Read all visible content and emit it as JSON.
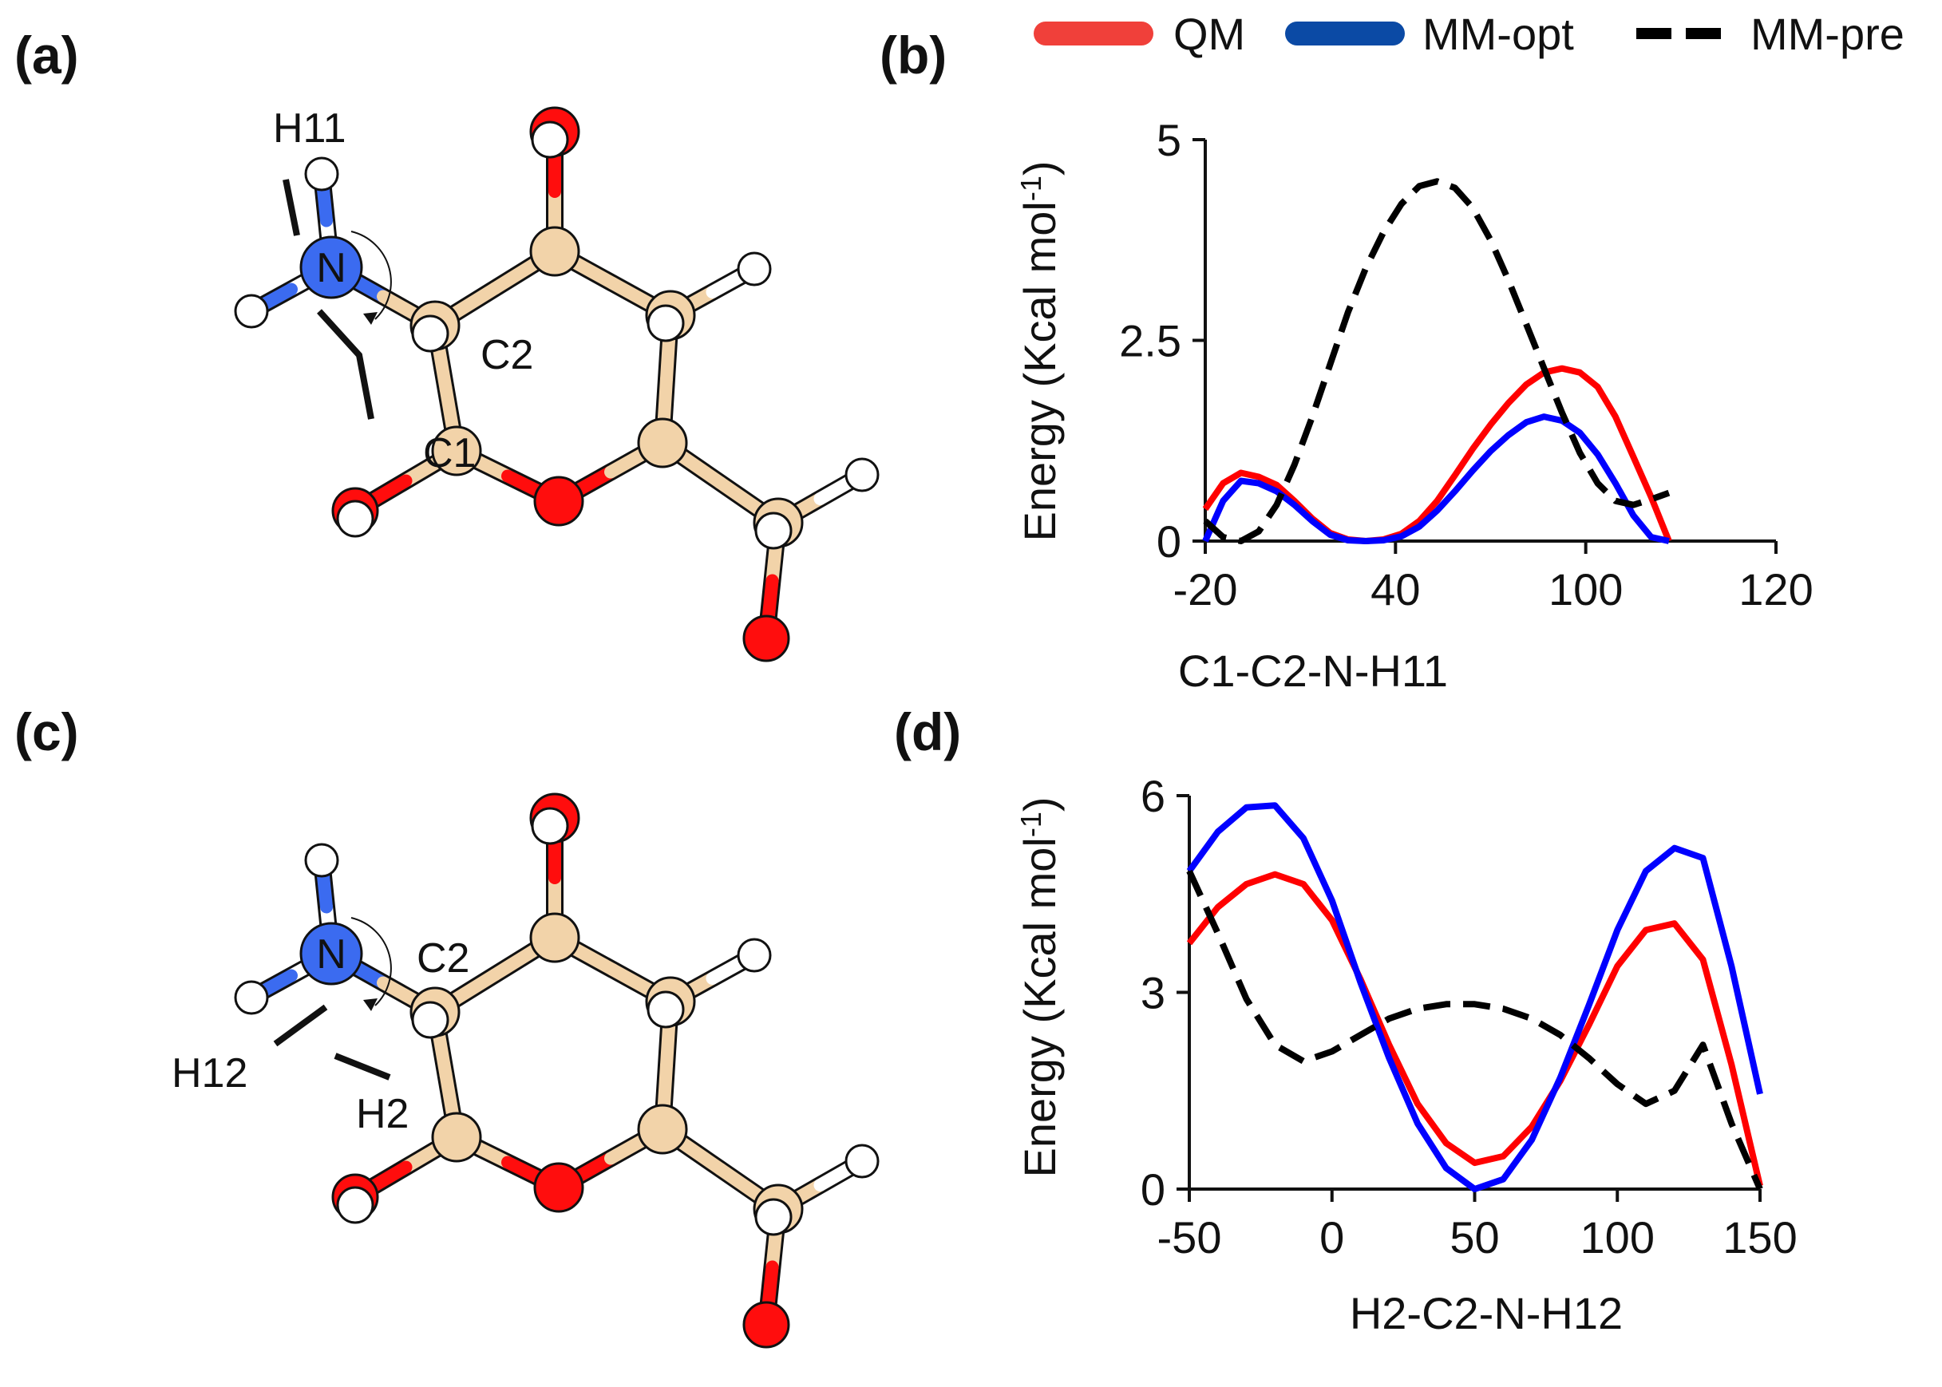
{
  "colors": {
    "qm": "#ff0000",
    "mm_opt": "#0000ff",
    "mm_pre": "#000000",
    "legend_qm": "#f0403a",
    "legend_mm_opt": "#0b4aa5",
    "carbon": "#f2d3a9",
    "oxygen": "#ff0d0d",
    "nitrogen": "#3b6bf0",
    "hydrogen": "#ffffff"
  },
  "legend": {
    "items": [
      {
        "label": "QM",
        "style": "solid",
        "color_key": "legend_qm"
      },
      {
        "label": "MM-opt",
        "style": "solid",
        "color_key": "legend_mm_opt"
      },
      {
        "label": "MM-pre",
        "style": "dashed",
        "color_key": "mm_pre"
      }
    ]
  },
  "panels": {
    "a": {
      "label": "(a)",
      "atoms": {
        "n": "N",
        "c1": "C1",
        "c2": "C2",
        "h11": "H11"
      }
    },
    "c": {
      "label": "(c)",
      "atoms": {
        "n": "N",
        "c2": "C2",
        "h12": "H12",
        "h2": "H2"
      }
    }
  },
  "chart_data": [
    {
      "panel_label": "(b)",
      "type": "line",
      "xlabel": "C1-C2-N-H11",
      "ylabel": "Energy (Kcal mol",
      "ylabel_sup": "-1",
      "ylabel_close": ")",
      "xlim": [
        -20,
        140
      ],
      "ylim": [
        0,
        5
      ],
      "xticks": [
        -20,
        40,
        100,
        120
      ],
      "yticks": [
        0,
        2.5,
        5
      ],
      "ytick_labels": [
        "0",
        "2.5",
        "5"
      ],
      "series": [
        {
          "name": "QM",
          "color_key": "qm",
          "dash": false,
          "x": [
            -20,
            -15,
            -10,
            -5,
            0,
            5,
            10,
            15,
            20,
            25,
            30,
            35,
            40,
            45,
            50,
            55,
            60,
            65,
            70,
            75,
            80,
            85,
            90,
            95,
            100,
            105,
            110,
            115,
            120
          ],
          "y": [
            0.4,
            0.72,
            0.85,
            0.8,
            0.7,
            0.5,
            0.28,
            0.1,
            0.02,
            0.0,
            0.02,
            0.09,
            0.25,
            0.5,
            0.82,
            1.15,
            1.45,
            1.72,
            1.95,
            2.1,
            2.15,
            2.1,
            1.92,
            1.55,
            1.05,
            0.55,
            0.0,
            null,
            null
          ]
        },
        {
          "name": "MM-opt",
          "color_key": "mm_opt",
          "dash": false,
          "x": [
            -20,
            -15,
            -10,
            -5,
            0,
            5,
            10,
            15,
            20,
            25,
            30,
            35,
            40,
            45,
            50,
            55,
            60,
            65,
            70,
            75,
            80,
            85,
            90,
            95,
            100,
            105,
            110
          ],
          "y": [
            0.0,
            0.5,
            0.75,
            0.72,
            0.62,
            0.45,
            0.25,
            0.08,
            0.01,
            0.0,
            0.01,
            0.06,
            0.18,
            0.38,
            0.62,
            0.88,
            1.12,
            1.32,
            1.48,
            1.55,
            1.5,
            1.35,
            1.08,
            0.72,
            0.32,
            0.05,
            0.0
          ]
        },
        {
          "name": "MM-pre",
          "color_key": "mm_pre",
          "dash": true,
          "x": [
            -20,
            -15,
            -10,
            -5,
            0,
            5,
            10,
            15,
            20,
            25,
            30,
            35,
            40,
            45,
            50,
            55,
            60,
            65,
            70,
            75,
            80,
            85,
            90,
            95,
            100,
            105,
            110,
            115
          ],
          "y": [
            0.25,
            0.05,
            0.0,
            0.12,
            0.45,
            0.95,
            1.55,
            2.2,
            2.85,
            3.4,
            3.85,
            4.2,
            4.42,
            4.48,
            4.4,
            4.15,
            3.75,
            3.25,
            2.7,
            2.15,
            1.6,
            1.1,
            0.72,
            0.5,
            0.45,
            0.52,
            0.6,
            null
          ]
        }
      ]
    },
    {
      "panel_label": "(d)",
      "type": "line",
      "xlabel": "H2-C2-N-H12",
      "ylabel": "Energy (Kcal mol",
      "ylabel_sup": "-1",
      "ylabel_close": ")",
      "xlim": [
        -50,
        150
      ],
      "ylim": [
        0,
        6
      ],
      "xticks": [
        -50,
        0,
        50,
        100,
        150
      ],
      "yticks": [
        0,
        3,
        6
      ],
      "ytick_labels": [
        "0",
        "3",
        "6"
      ],
      "series": [
        {
          "name": "QM",
          "color_key": "qm",
          "dash": false,
          "x": [
            -50,
            -40,
            -30,
            -20,
            -10,
            0,
            10,
            20,
            30,
            40,
            50,
            60,
            70,
            80,
            90,
            100,
            110,
            120,
            130,
            140,
            150
          ],
          "y": [
            3.75,
            4.3,
            4.65,
            4.8,
            4.65,
            4.1,
            3.2,
            2.2,
            1.3,
            0.7,
            0.4,
            0.5,
            0.95,
            1.65,
            2.5,
            3.4,
            3.95,
            4.05,
            3.5,
            1.9,
            0.05
          ]
        },
        {
          "name": "MM-opt",
          "color_key": "mm_opt",
          "dash": false,
          "x": [
            -50,
            -40,
            -30,
            -20,
            -10,
            0,
            10,
            20,
            30,
            40,
            50,
            60,
            70,
            80,
            90,
            100,
            110,
            120,
            130,
            140,
            150
          ],
          "y": [
            4.85,
            5.45,
            5.82,
            5.85,
            5.35,
            4.4,
            3.15,
            2.0,
            1.0,
            0.32,
            0.0,
            0.15,
            0.75,
            1.7,
            2.8,
            3.95,
            4.85,
            5.2,
            5.05,
            3.4,
            1.45
          ]
        },
        {
          "name": "MM-pre",
          "color_key": "mm_pre",
          "dash": true,
          "x": [
            -50,
            -40,
            -30,
            -20,
            -10,
            0,
            10,
            20,
            30,
            40,
            50,
            60,
            70,
            80,
            90,
            100,
            110,
            120,
            130,
            140,
            150
          ],
          "y": [
            4.85,
            3.9,
            2.9,
            2.2,
            1.95,
            2.1,
            2.35,
            2.6,
            2.75,
            2.82,
            2.82,
            2.75,
            2.6,
            2.35,
            2.0,
            1.6,
            1.3,
            1.5,
            2.2,
            1.0,
            0.0
          ]
        }
      ]
    }
  ]
}
